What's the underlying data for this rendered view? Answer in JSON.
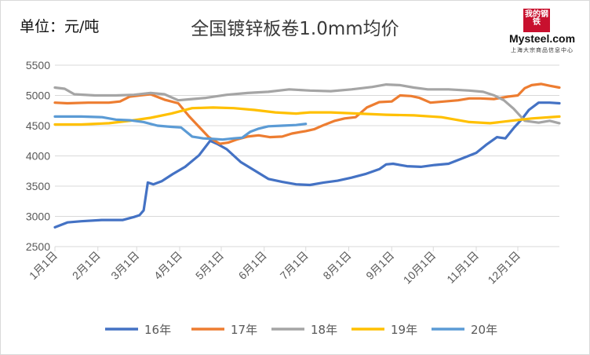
{
  "unit_label": "单位：元/吨",
  "logo": {
    "mark": "我的钢铁",
    "brand": "Mysteel.com",
    "sub": "上海大宗商品信息中心"
  },
  "chart_data": {
    "type": "line",
    "title": "全国镀锌板卷1.0mm均价",
    "xlabel": "",
    "ylabel": "元/吨",
    "ylim": [
      2500,
      5500
    ],
    "yticks": [
      2500,
      3000,
      3500,
      4000,
      4500,
      5000,
      5500
    ],
    "grid": true,
    "legend_position": "bottom",
    "categories": [
      "1月1日",
      "2月1日",
      "3月1日",
      "4月1日",
      "5月1日",
      "6月1日",
      "7月1日",
      "8月1日",
      "9月1日",
      "10月1日",
      "11月1日",
      "12月1日"
    ],
    "month_start_day": [
      1,
      32,
      60,
      91,
      121,
      152,
      182,
      213,
      244,
      274,
      305,
      335
    ],
    "x_max_day": 365,
    "series": [
      {
        "name": "16年",
        "color": "#4472c4",
        "x": [
          1,
          10,
          20,
          35,
          50,
          58,
          62,
          65,
          68,
          72,
          78,
          86,
          95,
          105,
          113,
          118,
          125,
          135,
          145,
          155,
          165,
          175,
          185,
          195,
          205,
          215,
          225,
          235,
          240,
          245,
          255,
          265,
          275,
          285,
          295,
          305,
          312,
          320,
          326,
          332,
          338,
          343,
          350,
          358,
          365
        ],
        "values": [
          2820,
          2900,
          2920,
          2940,
          2940,
          2990,
          3020,
          3100,
          3560,
          3530,
          3580,
          3700,
          3820,
          4010,
          4250,
          4200,
          4110,
          3900,
          3760,
          3620,
          3570,
          3530,
          3520,
          3560,
          3590,
          3640,
          3700,
          3780,
          3860,
          3870,
          3830,
          3820,
          3850,
          3870,
          3960,
          4050,
          4180,
          4310,
          4290,
          4460,
          4610,
          4760,
          4880,
          4880,
          4870
        ]
      },
      {
        "name": "17年",
        "color": "#ed7d31",
        "x": [
          1,
          10,
          25,
          40,
          48,
          55,
          62,
          70,
          80,
          90,
          98,
          105,
          112,
          120,
          126,
          132,
          140,
          148,
          156,
          165,
          172,
          182,
          188,
          195,
          203,
          210,
          218,
          226,
          235,
          244,
          250,
          258,
          264,
          272,
          282,
          292,
          300,
          308,
          318,
          328,
          335,
          340,
          345,
          352,
          358,
          365
        ],
        "values": [
          4880,
          4870,
          4880,
          4880,
          4900,
          4980,
          5000,
          5020,
          4930,
          4870,
          4650,
          4480,
          4310,
          4200,
          4220,
          4270,
          4320,
          4340,
          4310,
          4320,
          4370,
          4410,
          4440,
          4510,
          4580,
          4620,
          4640,
          4800,
          4890,
          4900,
          5000,
          4990,
          4960,
          4880,
          4900,
          4920,
          4950,
          4950,
          4940,
          4980,
          5000,
          5120,
          5170,
          5190,
          5160,
          5130
        ]
      },
      {
        "name": "18年",
        "color": "#a5a5a5",
        "x": [
          1,
          8,
          15,
          30,
          45,
          58,
          70,
          80,
          90,
          100,
          110,
          125,
          140,
          155,
          170,
          185,
          200,
          215,
          230,
          240,
          250,
          260,
          270,
          285,
          300,
          310,
          318,
          325,
          332,
          340,
          350,
          358,
          365
        ],
        "values": [
          5130,
          5110,
          5020,
          5000,
          5000,
          5010,
          5040,
          5020,
          4920,
          4940,
          4960,
          5010,
          5040,
          5060,
          5100,
          5080,
          5070,
          5100,
          5140,
          5180,
          5170,
          5130,
          5100,
          5100,
          5080,
          5060,
          5000,
          4920,
          4780,
          4580,
          4550,
          4580,
          4540
        ]
      },
      {
        "name": "19年",
        "color": "#ffc000",
        "x": [
          1,
          20,
          40,
          55,
          70,
          85,
          100,
          115,
          130,
          145,
          160,
          175,
          185,
          200,
          220,
          240,
          260,
          280,
          300,
          315,
          330,
          345,
          365
        ],
        "values": [
          4520,
          4520,
          4540,
          4580,
          4630,
          4700,
          4790,
          4800,
          4790,
          4760,
          4720,
          4700,
          4720,
          4720,
          4700,
          4680,
          4670,
          4640,
          4560,
          4540,
          4580,
          4620,
          4650
        ]
      },
      {
        "name": "20年",
        "color": "#5b9bd5",
        "x": [
          1,
          20,
          35,
          45,
          55,
          65,
          75,
          85,
          92,
          100,
          108,
          115,
          122,
          130,
          136,
          142,
          148,
          155,
          165,
          175,
          182
        ],
        "values": [
          4650,
          4650,
          4640,
          4600,
          4590,
          4560,
          4500,
          4480,
          4470,
          4320,
          4290,
          4280,
          4270,
          4290,
          4300,
          4400,
          4450,
          4490,
          4500,
          4510,
          4530
        ]
      }
    ]
  }
}
